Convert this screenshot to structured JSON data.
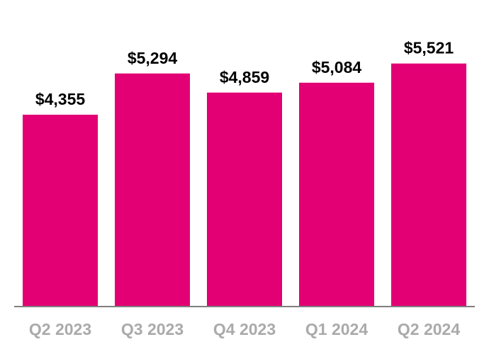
{
  "chart_data": {
    "type": "bar",
    "categories": [
      "Q2 2023",
      "Q3 2023",
      "Q4 2023",
      "Q1 2024",
      "Q2 2024"
    ],
    "values": [
      4355,
      5294,
      4859,
      5084,
      5521
    ],
    "data_labels": [
      "$4,355",
      "$5,294",
      "$4,859",
      "$5,084",
      "$5,521"
    ],
    "title": "",
    "xlabel": "",
    "ylabel": "",
    "ylim": [
      0,
      6968
    ],
    "grid": false,
    "colors": {
      "bar": "#E20074",
      "axis": "#7f7f7f",
      "tick_label": "#aaaaaa",
      "data_label": "#000000"
    }
  }
}
